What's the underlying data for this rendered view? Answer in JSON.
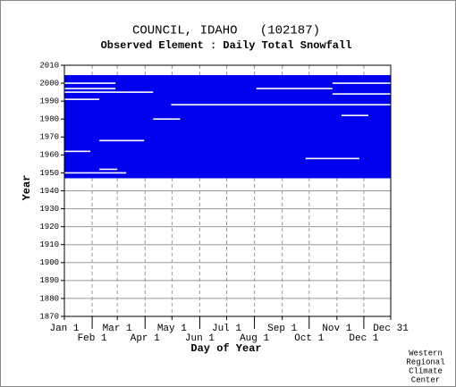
{
  "chart_data": {
    "type": "coverage",
    "title": "COUNCIL, IDAHO   (102187)",
    "subtitle": "Observed Element : Daily Total Snowfall",
    "xlabel": "Day of Year",
    "ylabel": "Year",
    "credit": [
      "Western",
      "Regional",
      "Climate",
      "Center"
    ],
    "color": "#0000ee",
    "gap_color": "#ffffff",
    "xlim": [
      1,
      365
    ],
    "xticks": [
      {
        "value": 1,
        "label": "Jan 1"
      },
      {
        "value": 32,
        "label": "Feb 1"
      },
      {
        "value": 60,
        "label": "Mar 1"
      },
      {
        "value": 91,
        "label": "Apr 1"
      },
      {
        "value": 121,
        "label": "May 1"
      },
      {
        "value": 152,
        "label": "Jun 1"
      },
      {
        "value": 182,
        "label": "Jul 1"
      },
      {
        "value": 213,
        "label": "Aug 1"
      },
      {
        "value": 244,
        "label": "Sep 1"
      },
      {
        "value": 274,
        "label": "Oct 1"
      },
      {
        "value": 305,
        "label": "Nov 1"
      },
      {
        "value": 335,
        "label": "Dec 1"
      },
      {
        "value": 365,
        "label": "Dec 31"
      }
    ],
    "ylim": [
      1870,
      2010
    ],
    "yticks": [
      1870,
      1880,
      1890,
      1900,
      1910,
      1920,
      1930,
      1940,
      1950,
      1960,
      1970,
      1980,
      1990,
      2000,
      2010
    ],
    "grid": true,
    "coverage": {
      "x": [
        1,
        365
      ],
      "y": [
        1947,
        2004.5
      ]
    },
    "gaps": [
      {
        "x": [
          1,
          58
        ],
        "y": 2000
      },
      {
        "x": [
          300,
          365
        ],
        "y": 2000
      },
      {
        "x": [
          1,
          58
        ],
        "y": 1997
      },
      {
        "x": [
          215,
          300
        ],
        "y": 1997
      },
      {
        "x": [
          1,
          100
        ],
        "y": 1995
      },
      {
        "x": [
          300,
          365
        ],
        "y": 1994
      },
      {
        "x": [
          1,
          40
        ],
        "y": 1991
      },
      {
        "x": [
          120,
          365
        ],
        "y": 1988
      },
      {
        "x": [
          100,
          130
        ],
        "y": 1980
      },
      {
        "x": [
          310,
          340
        ],
        "y": 1982
      },
      {
        "x": [
          40,
          90
        ],
        "y": 1968
      },
      {
        "x": [
          1,
          30
        ],
        "y": 1962
      },
      {
        "x": [
          270,
          330
        ],
        "y": 1958
      },
      {
        "x": [
          1,
          70
        ],
        "y": 1950
      },
      {
        "x": [
          40,
          60
        ],
        "y": 1952
      }
    ]
  }
}
